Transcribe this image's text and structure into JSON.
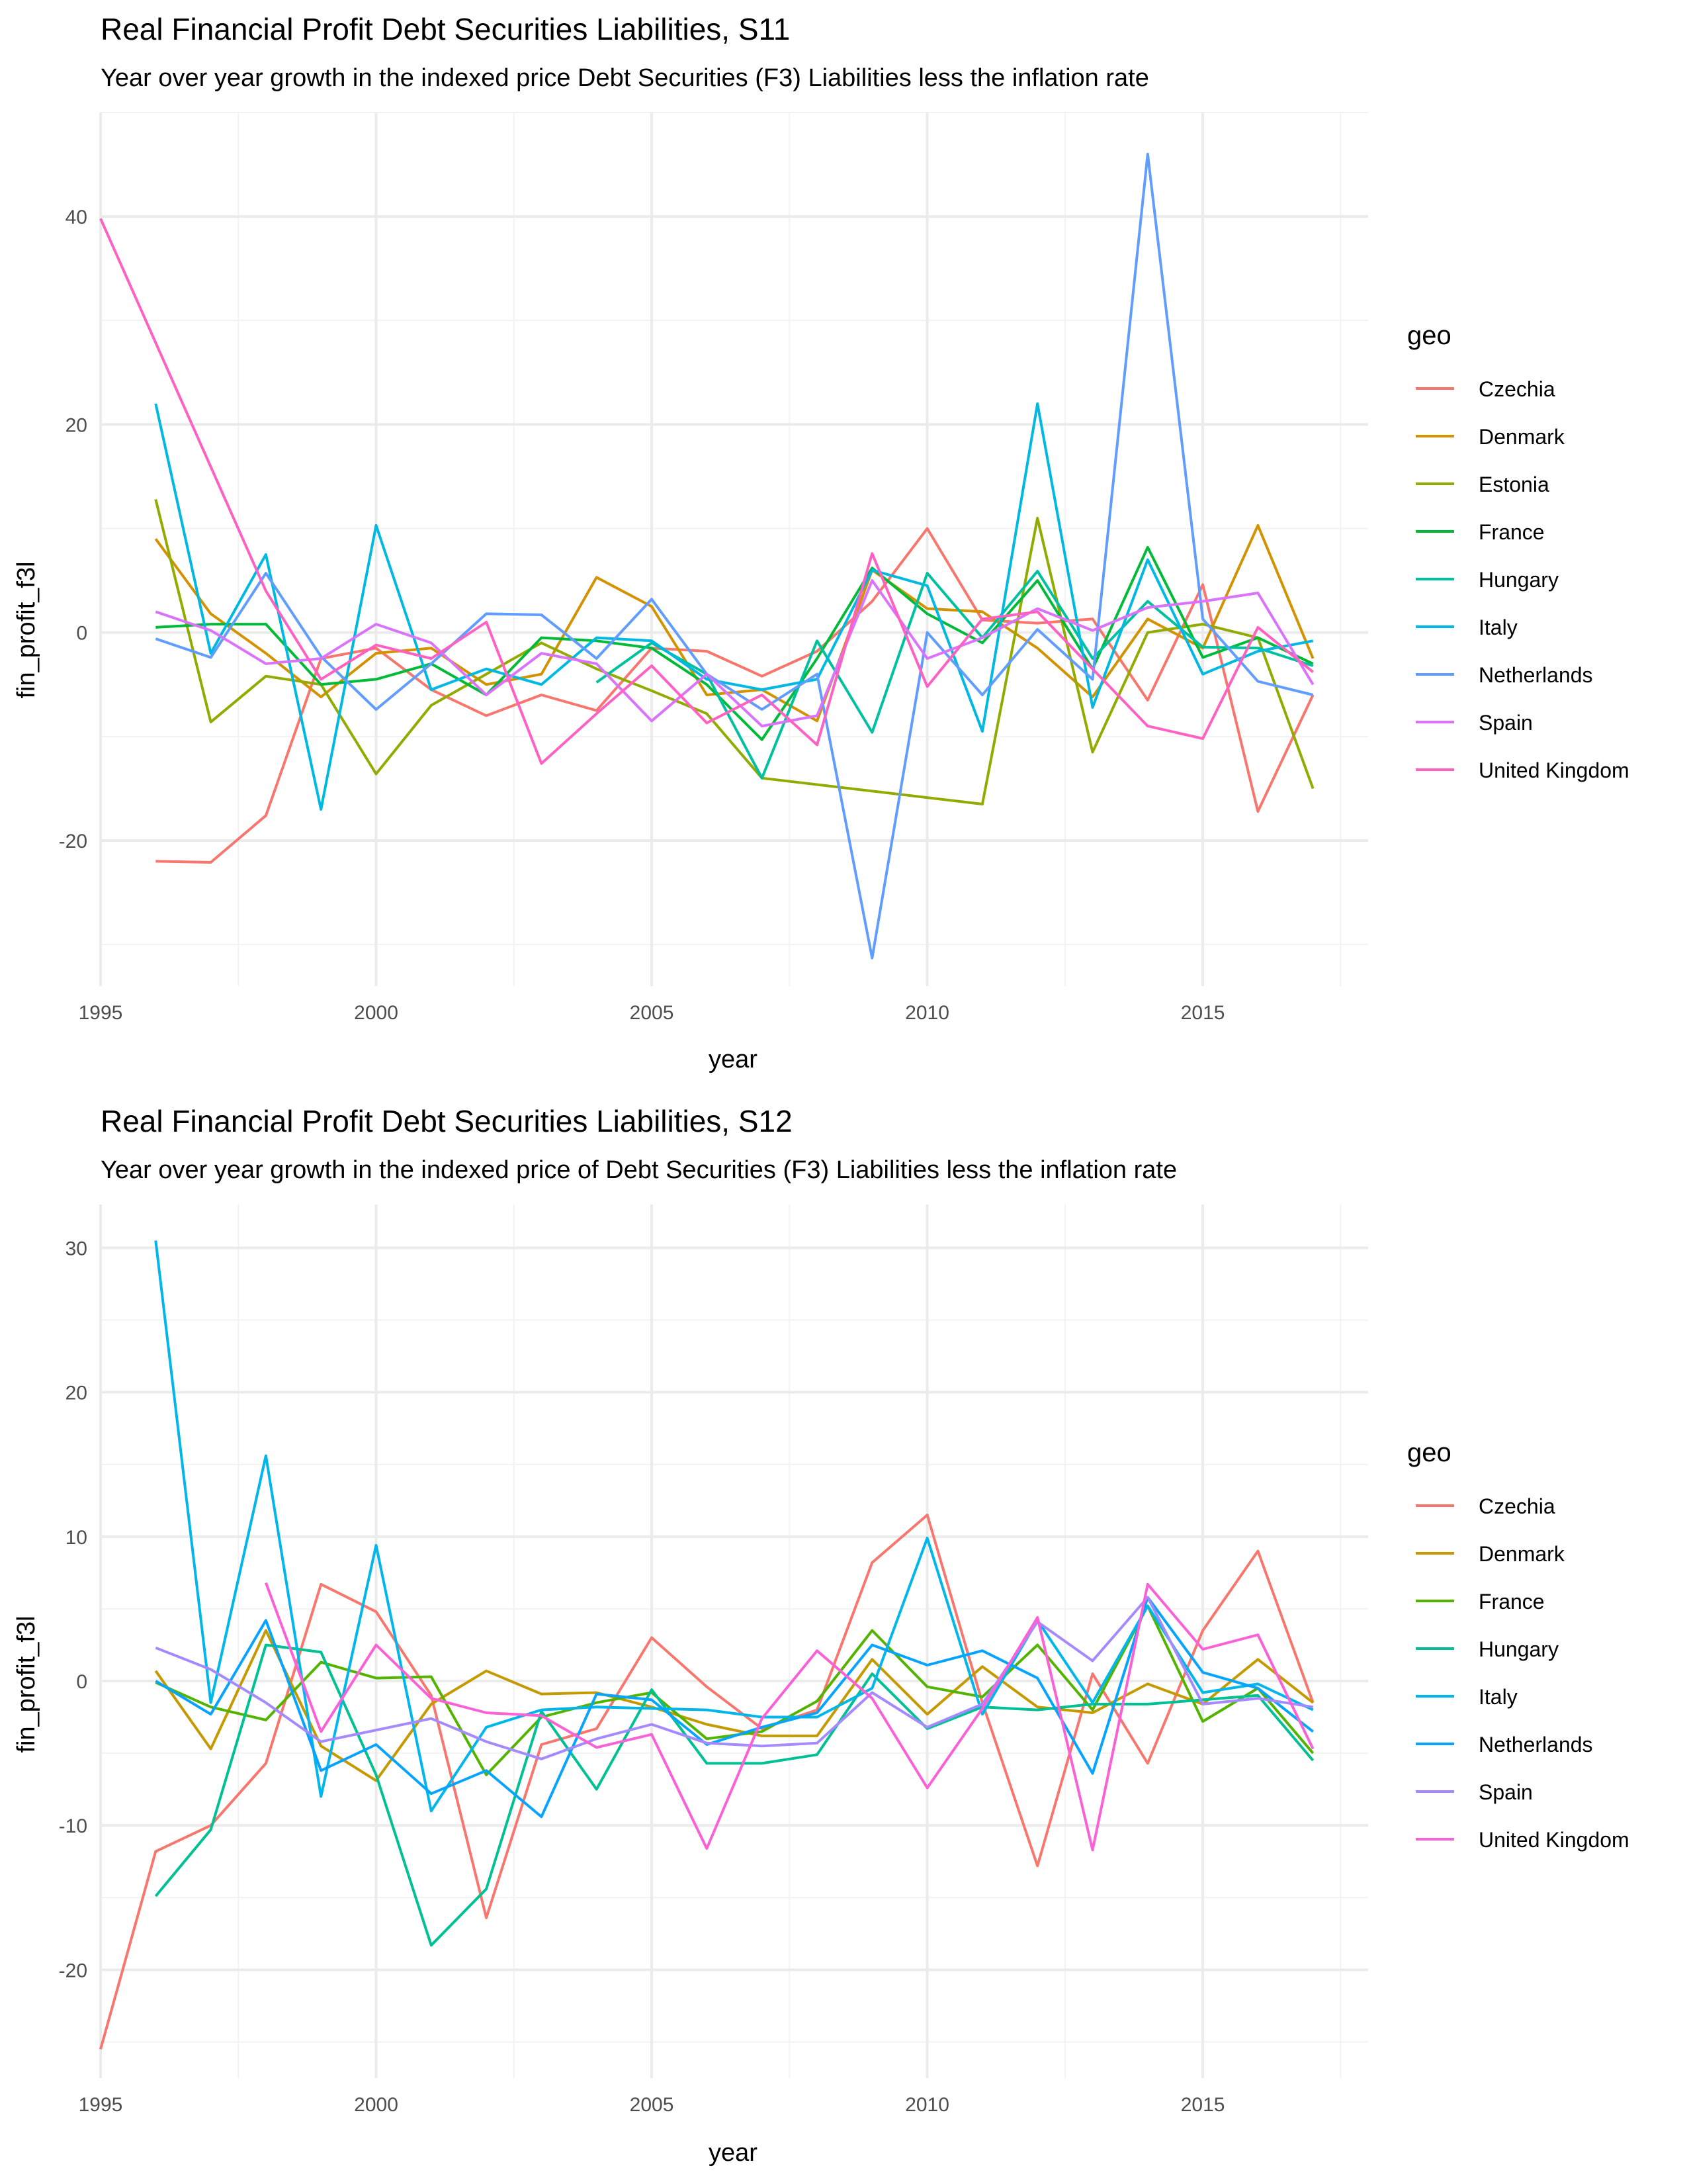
{
  "chart_data": [
    {
      "type": "line",
      "title": "Real Financial Profit Debt Securities Liabilities, S11",
      "subtitle": "Year over year growth in the indexed price Debt Securities (F3) Liabilities less the inflation rate",
      "xlabel": "year",
      "ylabel": "fin_profit_f3l",
      "xlim": [
        1995,
        2018
      ],
      "ylim": [
        -34,
        50
      ],
      "xticks": [
        1995,
        2000,
        2005,
        2010,
        2015
      ],
      "yticks": [
        -20,
        0,
        20,
        40
      ],
      "grid": true,
      "legend_title": "geo",
      "legend_position": "right",
      "series": [
        {
          "name": "Czechia",
          "color": "#F8766D",
          "x": [
            1996,
            1997,
            1998,
            1999,
            2000,
            2001,
            2002,
            2003,
            2004,
            2005,
            2006,
            2007,
            2008,
            2009,
            2010,
            2011,
            2012,
            2013,
            2014,
            2015,
            2016,
            2017
          ],
          "y": [
            -22,
            -22.1,
            -17.6,
            -2.5,
            -1.5,
            -5.5,
            -8,
            -6,
            -7.5,
            -1.5,
            -1.8,
            -4.2,
            -1.8,
            3,
            10,
            1.2,
            0.9,
            1.3,
            -6.5,
            4.6,
            -17.2,
            -6
          ]
        },
        {
          "name": "Denmark",
          "color": "#D39200",
          "x": [
            1996,
            1997,
            1998,
            1999,
            2000,
            2001,
            2002,
            2003,
            2004,
            2005,
            2006,
            2007,
            2008,
            2009,
            2010,
            2011,
            2012,
            2013,
            2014,
            2015,
            2016,
            2017
          ],
          "y": [
            9,
            1.8,
            -2,
            -6.2,
            -2,
            -1.5,
            -5,
            -4,
            5.3,
            2.5,
            -6,
            -5.5,
            -8.5,
            6,
            2.3,
            2,
            -1.5,
            -6.2,
            1.3,
            -1.5,
            10.3,
            -2.5
          ]
        },
        {
          "name": "Estonia",
          "color": "#93AA00",
          "x": [
            1996,
            1997,
            1998,
            1999,
            2000,
            2001,
            2002,
            2003,
            2004,
            2005,
            2006,
            2007,
            2011,
            2012,
            2013,
            2014,
            2015,
            2016,
            2017
          ],
          "y": [
            12.8,
            -8.6,
            -4.2,
            -5,
            -13.6,
            -7,
            -4,
            -1,
            -3.5,
            -5.6,
            -7.8,
            -14,
            -16.5,
            11,
            -11.5,
            0,
            0.8,
            -0.5,
            -15
          ]
        },
        {
          "name": "France",
          "color": "#00BA38",
          "x": [
            1996,
            1997,
            1998,
            1999,
            2000,
            2001,
            2002,
            2003,
            2004,
            2005,
            2006,
            2007,
            2008,
            2009,
            2010,
            2011,
            2012,
            2013,
            2014,
            2015,
            2016,
            2017
          ],
          "y": [
            0.5,
            0.8,
            0.8,
            -5,
            -4.5,
            -3,
            -6,
            -0.5,
            -0.8,
            -1.5,
            -5,
            -10.3,
            -2.5,
            6.2,
            1.8,
            -1,
            5,
            -3.5,
            8.2,
            -2.4,
            -0.5,
            -3
          ]
        },
        {
          "name": "Hungary",
          "color": "#00C19F",
          "x": [
            2004,
            2005,
            2006,
            2007,
            2008,
            2009,
            2010,
            2011,
            2012,
            2013,
            2014,
            2015,
            2016,
            2017
          ],
          "y": [
            -4.8,
            -1,
            -4,
            -14,
            -0.8,
            -9.6,
            5.7,
            -0.5,
            5.9,
            -2.5,
            3,
            -1.4,
            -1.5,
            -3.2
          ]
        },
        {
          "name": "Italy",
          "color": "#00B9E3",
          "x": [
            1996,
            1997,
            1998,
            1999,
            2000,
            2001,
            2002,
            2003,
            2004,
            2005,
            2006,
            2007,
            2008,
            2009,
            2010,
            2011,
            2012,
            2013,
            2014,
            2015,
            2016,
            2017
          ],
          "y": [
            22,
            -2,
            7.5,
            -17,
            10.3,
            -5.5,
            -3.5,
            -5,
            -0.5,
            -0.8,
            -4.5,
            -5.5,
            -4.5,
            6,
            4.5,
            -9.5,
            22,
            -7.2,
            7,
            -4,
            -1.8,
            -0.8
          ]
        },
        {
          "name": "Netherlands",
          "color": "#619CFF",
          "x": [
            1996,
            1997,
            1998,
            1999,
            2000,
            2001,
            2002,
            2003,
            2004,
            2005,
            2006,
            2007,
            2008,
            2009,
            2010,
            2011,
            2012,
            2013,
            2014,
            2015,
            2016,
            2017
          ],
          "y": [
            -0.6,
            -2.4,
            5.7,
            -2.3,
            -7.4,
            -3,
            1.8,
            1.7,
            -2.5,
            3.2,
            -4,
            -7.4,
            -4,
            -31.3,
            0,
            -6,
            0.3,
            -4.5,
            46,
            1.3,
            -4.7,
            -6
          ]
        },
        {
          "name": "Spain",
          "color": "#DB72FB",
          "x": [
            1996,
            1997,
            1998,
            1999,
            2000,
            2001,
            2002,
            2003,
            2004,
            2005,
            2006,
            2007,
            2008,
            2009,
            2010,
            2011,
            2012,
            2013,
            2014,
            2015,
            2016,
            2017
          ],
          "y": [
            2,
            0.2,
            -3,
            -2.5,
            0.8,
            -1,
            -6,
            -2,
            -3,
            -8.5,
            -4,
            -9,
            -8,
            5,
            -2.5,
            -0.5,
            2.3,
            0.2,
            2.4,
            3,
            3.8,
            -5
          ]
        },
        {
          "name": "United Kingdom",
          "color": "#FF61C3",
          "x": [
            1995,
            1998,
            1999,
            2000,
            2001,
            2002,
            2003,
            2004,
            2005,
            2006,
            2007,
            2008,
            2009,
            2010,
            2011,
            2012,
            2013,
            2014,
            2015,
            2016,
            2017
          ],
          "y": [
            39.8,
            4,
            -4.5,
            -1.2,
            -2.5,
            1,
            -12.6,
            -7.8,
            -3.2,
            -8.7,
            -6,
            -10.8,
            7.6,
            -5.2,
            1.3,
            2,
            -3.5,
            -9,
            -10.2,
            0.5,
            -3.8
          ]
        }
      ]
    },
    {
      "type": "line",
      "title": "Real Financial Profit Debt Securities Liabilities, S12",
      "subtitle": "Year over year growth in the indexed price of Debt Securities (F3) Liabilities less the inflation rate",
      "xlabel": "year",
      "ylabel": "fin_profit_f3l",
      "xlim": [
        1995,
        2018
      ],
      "ylim": [
        -27.5,
        33
      ],
      "xticks": [
        1995,
        2000,
        2005,
        2010,
        2015
      ],
      "yticks": [
        -20,
        -10,
        0,
        10,
        20,
        30
      ],
      "grid": true,
      "legend_title": "geo",
      "legend_position": "right",
      "series": [
        {
          "name": "Czechia",
          "color": "#F8766D",
          "x": [
            1995,
            1996,
            1997,
            1998,
            1999,
            2000,
            2001,
            2002,
            2003,
            2004,
            2005,
            2006,
            2007,
            2008,
            2009,
            2010,
            2011,
            2012,
            2013,
            2014,
            2015,
            2016,
            2017
          ],
          "y": [
            -25.5,
            -11.8,
            -10,
            -5.7,
            6.7,
            4.8,
            -1,
            -16.4,
            -4.4,
            -3.3,
            3,
            -0.4,
            -3.3,
            -2,
            8.2,
            11.5,
            -1.5,
            -12.8,
            0.5,
            -5.7,
            3.5,
            9,
            -1.5
          ]
        },
        {
          "name": "Denmark",
          "color": "#C49A00",
          "x": [
            1996,
            1997,
            1998,
            1999,
            2000,
            2001,
            2002,
            2003,
            2004,
            2005,
            2006,
            2007,
            2008,
            2009,
            2010,
            2011,
            2012,
            2013,
            2014,
            2015,
            2016,
            2017
          ],
          "y": [
            0.7,
            -4.7,
            3.5,
            -4.5,
            -6.9,
            -1.6,
            0.7,
            -0.9,
            -0.8,
            -1.8,
            -3,
            -3.8,
            -3.8,
            1.5,
            -2.3,
            1,
            -1.8,
            -2.2,
            -0.2,
            -1.6,
            1.5,
            -1.5
          ]
        },
        {
          "name": "France",
          "color": "#53B400",
          "x": [
            1996,
            1997,
            1998,
            1999,
            2000,
            2001,
            2002,
            2003,
            2004,
            2005,
            2006,
            2007,
            2008,
            2009,
            2010,
            2011,
            2012,
            2013,
            2014,
            2015,
            2016,
            2017
          ],
          "y": [
            -0.1,
            -1.8,
            -2.7,
            1.3,
            0.2,
            0.3,
            -6.5,
            -2.5,
            -1.5,
            -0.8,
            -4,
            -3.5,
            -1.4,
            3.5,
            -0.4,
            -1.1,
            2.5,
            -2,
            5.2,
            -2.8,
            -0.5,
            -5
          ]
        },
        {
          "name": "Hungary",
          "color": "#00C094",
          "x": [
            1996,
            1997,
            1998,
            1999,
            2000,
            2001,
            2002,
            2003,
            2004,
            2005,
            2006,
            2007,
            2008,
            2009,
            2010,
            2011,
            2012,
            2013,
            2014,
            2015,
            2016,
            2017
          ],
          "y": [
            -14.9,
            -10.3,
            2.5,
            2,
            -6.5,
            -18.3,
            -14.4,
            -2.1,
            -7.5,
            -0.6,
            -5.7,
            -5.7,
            -5.1,
            0.5,
            -3.3,
            -1.8,
            -2,
            -1.6,
            -1.6,
            -1.3,
            -1,
            -5.5
          ]
        },
        {
          "name": "Italy",
          "color": "#00B6EB",
          "x": [
            1996,
            1997,
            1998,
            1999,
            2000,
            2001,
            2002,
            2003,
            2004,
            2005,
            2006,
            2007,
            2008,
            2009,
            2010,
            2011,
            2012,
            2013,
            2014,
            2015,
            2016,
            2017
          ],
          "y": [
            30.5,
            -1.5,
            15.6,
            -8,
            9.4,
            -9,
            -3.2,
            -2,
            -1.8,
            -1.9,
            -2,
            -2.5,
            -2.5,
            -0.5,
            9.9,
            -2.3,
            4.2,
            -1.5,
            5.2,
            -0.8,
            -0.2,
            -2
          ]
        },
        {
          "name": "Netherlands",
          "color": "#06A4FF",
          "x": [
            1996,
            1997,
            1998,
            1999,
            2000,
            2001,
            2002,
            2003,
            2004,
            2005,
            2006,
            2007,
            2008,
            2009,
            2010,
            2011,
            2012,
            2013,
            2014,
            2015,
            2016,
            2017
          ],
          "y": [
            0,
            -2.3,
            4.2,
            -6.2,
            -4.4,
            -7.8,
            -6.2,
            -9.4,
            -0.9,
            -1.3,
            -4.4,
            -3.2,
            -2.2,
            2.5,
            1.1,
            2.1,
            0.2,
            -6.4,
            5.8,
            0.6,
            -0.5,
            -3.5
          ]
        },
        {
          "name": "Spain",
          "color": "#A58AFF",
          "x": [
            1996,
            1997,
            1998,
            1999,
            2000,
            2001,
            2002,
            2003,
            2004,
            2005,
            2006,
            2007,
            2008,
            2009,
            2010,
            2011,
            2012,
            2013,
            2014,
            2015,
            2016,
            2017
          ],
          "y": [
            2.3,
            0.8,
            -1.5,
            -4.2,
            -3.4,
            -2.6,
            -4.2,
            -5.4,
            -4,
            -3,
            -4.3,
            -4.5,
            -4.3,
            -0.8,
            -3.2,
            -1.6,
            4.1,
            1.4,
            5.8,
            -1.6,
            -1.2,
            -1.8
          ]
        },
        {
          "name": "United Kingdom",
          "color": "#FB61D7",
          "x": [
            1998,
            1999,
            2000,
            2001,
            2002,
            2003,
            2004,
            2005,
            2006,
            2007,
            2008,
            2009,
            2010,
            2011,
            2012,
            2013,
            2014,
            2015,
            2016,
            2017
          ],
          "y": [
            6.8,
            -3.5,
            2.5,
            -1.2,
            -2.2,
            -2.4,
            -4.6,
            -3.7,
            -11.6,
            -2.6,
            2.1,
            -1.2,
            -7.4,
            -1.9,
            4.4,
            -11.7,
            6.7,
            2.2,
            3.2,
            -4.7
          ]
        }
      ]
    }
  ]
}
